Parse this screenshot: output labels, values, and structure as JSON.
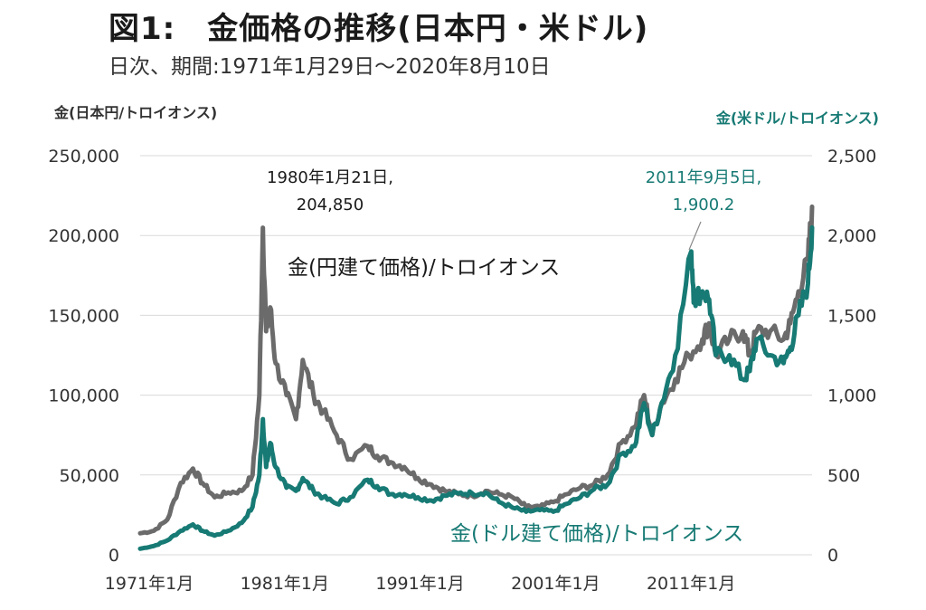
{
  "header": {
    "title": "図1:　金価格の推移(日本円・米ドル)",
    "subtitle": "日次、期間:1971年1月29日〜2020年8月10日"
  },
  "colors": {
    "jpy_series": "#6b6b6b",
    "usd_series": "#177a74",
    "grid": "#d9d9d9"
  },
  "chart_data": {
    "type": "line",
    "title": "金価格の推移(日本円・米ドル)",
    "subtitle": "日次、期間:1971年1月29日〜2020年8月10日",
    "y_left": {
      "label": "金(日本円/トロイオンス)",
      "range": [
        0,
        250000
      ],
      "ticks": [
        0,
        50000,
        100000,
        150000,
        200000,
        250000
      ],
      "tick_labels": [
        "0",
        "50,000",
        "100,000",
        "150,000",
        "200,000",
        "250,000"
      ]
    },
    "y_right": {
      "label": "金(米ドル/トロイオンス)",
      "range": [
        0,
        2500
      ],
      "ticks": [
        0,
        500,
        1000,
        1500,
        2000,
        2500
      ],
      "tick_labels": [
        "0",
        "500",
        "1,000",
        "1,500",
        "2,000",
        "2,500"
      ]
    },
    "x": {
      "range": [
        1971.0,
        2020.6
      ],
      "ticks": [
        1971,
        1981,
        1991,
        2001,
        2011
      ],
      "tick_labels": [
        "1971年1月",
        "1981年1月",
        "1991年1月",
        "2001年1月",
        "2011年1月"
      ]
    },
    "grid": "horizontal",
    "series": [
      {
        "name": "金(円建て価格)/トロイオンス",
        "axis": "left",
        "points": [
          [
            1971.0,
            13500
          ],
          [
            1972.0,
            15000
          ],
          [
            1973.0,
            22000
          ],
          [
            1974.0,
            45000
          ],
          [
            1974.9,
            54000
          ],
          [
            1975.6,
            45000
          ],
          [
            1976.5,
            36000
          ],
          [
            1977.5,
            39000
          ],
          [
            1978.5,
            40000
          ],
          [
            1979.3,
            50000
          ],
          [
            1979.8,
            100000
          ],
          [
            1980.06,
            204850
          ],
          [
            1980.3,
            140000
          ],
          [
            1980.6,
            155000
          ],
          [
            1981.0,
            120000
          ],
          [
            1981.8,
            100000
          ],
          [
            1982.5,
            85000
          ],
          [
            1983.0,
            122000
          ],
          [
            1983.8,
            100000
          ],
          [
            1984.5,
            90000
          ],
          [
            1985.5,
            75000
          ],
          [
            1986.5,
            60000
          ],
          [
            1987.8,
            68000
          ],
          [
            1988.5,
            62000
          ],
          [
            1989.5,
            58000
          ],
          [
            1990.5,
            55000
          ],
          [
            1991.5,
            48000
          ],
          [
            1992.5,
            44000
          ],
          [
            1993.5,
            40000
          ],
          [
            1994.5,
            38000
          ],
          [
            1995.5,
            37000
          ],
          [
            1996.5,
            40000
          ],
          [
            1997.5,
            38000
          ],
          [
            1998.5,
            36000
          ],
          [
            1999.5,
            30000
          ],
          [
            2000.5,
            30000
          ],
          [
            2001.5,
            33000
          ],
          [
            2002.5,
            38000
          ],
          [
            2003.5,
            42000
          ],
          [
            2004.5,
            44000
          ],
          [
            2005.5,
            50000
          ],
          [
            2006.5,
            70000
          ],
          [
            2007.5,
            80000
          ],
          [
            2008.2,
            100000
          ],
          [
            2008.8,
            75000
          ],
          [
            2009.5,
            95000
          ],
          [
            2010.5,
            110000
          ],
          [
            2011.5,
            125000
          ],
          [
            2012.5,
            135000
          ],
          [
            2013.0,
            145000
          ],
          [
            2013.5,
            125000
          ],
          [
            2014.5,
            135000
          ],
          [
            2015.5,
            140000
          ],
          [
            2016.0,
            125000
          ],
          [
            2016.5,
            140000
          ],
          [
            2017.5,
            140000
          ],
          [
            2018.5,
            135000
          ],
          [
            2019.0,
            145000
          ],
          [
            2019.6,
            165000
          ],
          [
            2020.3,
            185000
          ],
          [
            2020.6,
            218000
          ]
        ]
      },
      {
        "name": "金(ドル建て価格)/トロイオンス",
        "axis": "right",
        "points": [
          [
            1971.0,
            38
          ],
          [
            1972.0,
            55
          ],
          [
            1973.0,
            90
          ],
          [
            1974.0,
            150
          ],
          [
            1974.9,
            190
          ],
          [
            1975.6,
            150
          ],
          [
            1976.5,
            120
          ],
          [
            1977.5,
            150
          ],
          [
            1978.5,
            200
          ],
          [
            1979.3,
            300
          ],
          [
            1979.8,
            500
          ],
          [
            1980.06,
            850
          ],
          [
            1980.3,
            550
          ],
          [
            1980.6,
            700
          ],
          [
            1981.0,
            550
          ],
          [
            1981.8,
            420
          ],
          [
            1982.5,
            400
          ],
          [
            1983.0,
            480
          ],
          [
            1983.8,
            400
          ],
          [
            1984.5,
            360
          ],
          [
            1985.5,
            320
          ],
          [
            1986.5,
            360
          ],
          [
            1987.8,
            470
          ],
          [
            1988.5,
            430
          ],
          [
            1989.5,
            380
          ],
          [
            1990.5,
            380
          ],
          [
            1991.5,
            360
          ],
          [
            1992.5,
            340
          ],
          [
            1993.5,
            370
          ],
          [
            1994.5,
            385
          ],
          [
            1995.5,
            385
          ],
          [
            1996.5,
            390
          ],
          [
            1997.5,
            330
          ],
          [
            1998.5,
            295
          ],
          [
            1999.5,
            270
          ],
          [
            2000.5,
            280
          ],
          [
            2001.5,
            270
          ],
          [
            2002.5,
            320
          ],
          [
            2003.5,
            360
          ],
          [
            2004.5,
            410
          ],
          [
            2005.5,
            440
          ],
          [
            2006.5,
            630
          ],
          [
            2007.5,
            680
          ],
          [
            2008.2,
            950
          ],
          [
            2008.8,
            750
          ],
          [
            2009.5,
            950
          ],
          [
            2010.5,
            1250
          ],
          [
            2011.68,
            1900.2
          ],
          [
            2011.9,
            1600
          ],
          [
            2012.5,
            1650
          ],
          [
            2013.0,
            1600
          ],
          [
            2013.5,
            1250
          ],
          [
            2014.5,
            1250
          ],
          [
            2015.5,
            1100
          ],
          [
            2016.0,
            1150
          ],
          [
            2016.5,
            1350
          ],
          [
            2017.5,
            1250
          ],
          [
            2018.5,
            1200
          ],
          [
            2019.0,
            1300
          ],
          [
            2019.6,
            1500
          ],
          [
            2020.3,
            1700
          ],
          [
            2020.6,
            2050
          ]
        ]
      }
    ],
    "annotations": [
      {
        "line1": "1980年1月21日,",
        "line2": "204,850",
        "series": "jpy",
        "x": 1980.06,
        "y": 204850
      },
      {
        "line1": "2011年9月5日,",
        "line2": "1,900.2",
        "series": "usd",
        "x": 2011.68,
        "y": 1900.2
      }
    ]
  }
}
